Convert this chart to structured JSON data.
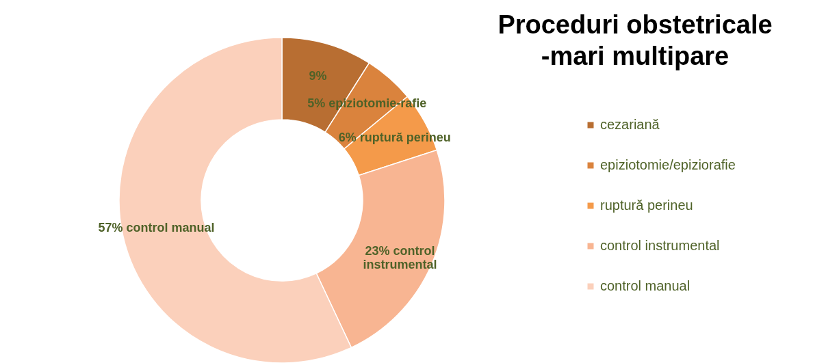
{
  "chart_data": {
    "type": "donut",
    "title": "Proceduri obstetricale\n-mari multipare",
    "categories": [
      "cezariană",
      "epiziotomie/epiziorafie",
      "ruptură perineu",
      "control instrumental",
      "control manual"
    ],
    "values": [
      9,
      5,
      6,
      23,
      57
    ],
    "colors": [
      "#b86e32",
      "#da833d",
      "#f49a4a",
      "#f8b592",
      "#fbd0bb"
    ],
    "value_labels": [
      "9%",
      "5% epiziotomie-rafie",
      "6% ruptură perineu",
      "23% control\ninstrumental",
      "57% control manual"
    ],
    "legend": "right"
  }
}
